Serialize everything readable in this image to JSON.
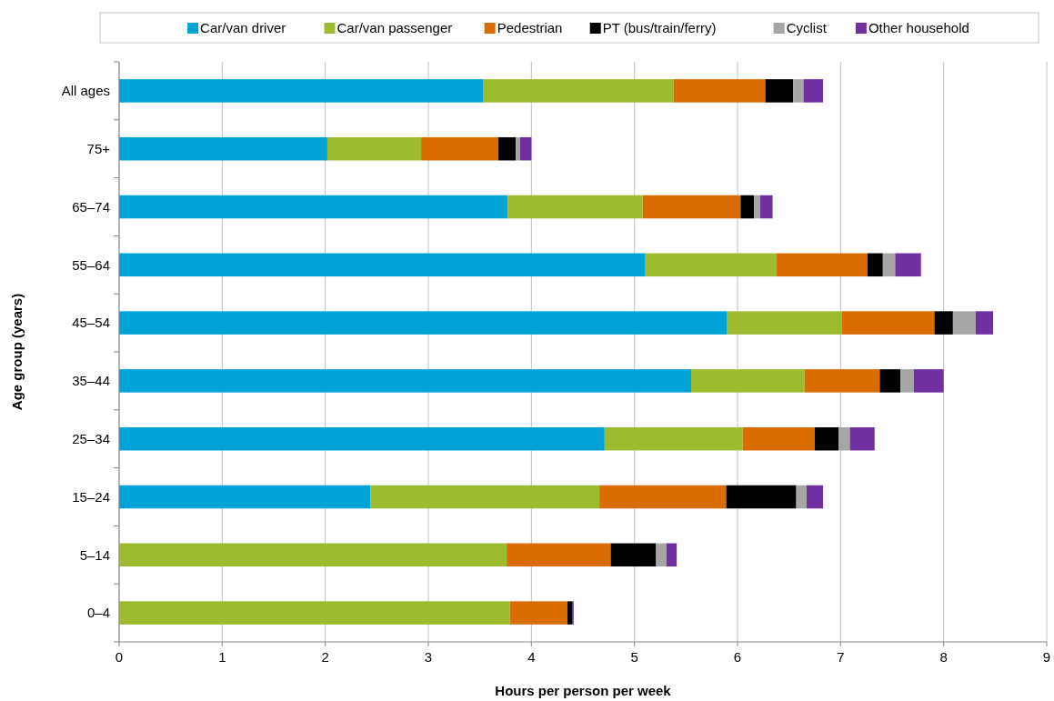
{
  "chart_data": {
    "type": "bar",
    "orientation": "horizontal",
    "stacked": true,
    "xlabel": "Hours per person per week",
    "ylabel": "Age group (years)",
    "categories": [
      "All ages",
      "75+",
      "65–74",
      "55–64",
      "45–54",
      "35–44",
      "25–34",
      "15–24",
      "5–14",
      "0–4"
    ],
    "series": [
      {
        "name": "Car/van driver",
        "color": "#00a3d6",
        "values": [
          3.53,
          2.02,
          3.77,
          5.1,
          5.9,
          5.55,
          4.71,
          2.44,
          0,
          0
        ]
      },
      {
        "name": "Car/van passenger",
        "color": "#9cbb2e",
        "values": [
          1.85,
          0.91,
          1.31,
          1.28,
          1.11,
          1.1,
          1.34,
          2.22,
          3.76,
          3.79
        ]
      },
      {
        "name": "Pedestrian",
        "color": "#d96d04",
        "values": [
          0.89,
          0.75,
          0.95,
          0.88,
          0.9,
          0.73,
          0.7,
          1.23,
          1.01,
          0.56
        ]
      },
      {
        "name": "PT (bus/train/ferry)",
        "color": "#000000",
        "values": [
          0.27,
          0.17,
          0.13,
          0.15,
          0.18,
          0.2,
          0.23,
          0.68,
          0.44,
          0.05
        ]
      },
      {
        "name": "Cyclist",
        "color": "#a6a6a6",
        "values": [
          0.1,
          0.04,
          0.06,
          0.12,
          0.22,
          0.13,
          0.11,
          0.1,
          0.1,
          null
        ]
      },
      {
        "name": "Other household",
        "color": "#7030a0",
        "values": [
          0.19,
          0.11,
          0.12,
          0.25,
          0.17,
          0.29,
          0.24,
          0.16,
          0.1,
          0.01
        ]
      }
    ],
    "xlim": [
      0,
      9
    ],
    "xticks": [
      0,
      1,
      2,
      3,
      4,
      5,
      6,
      7,
      8,
      9
    ],
    "grid": "x",
    "legend": "top"
  }
}
